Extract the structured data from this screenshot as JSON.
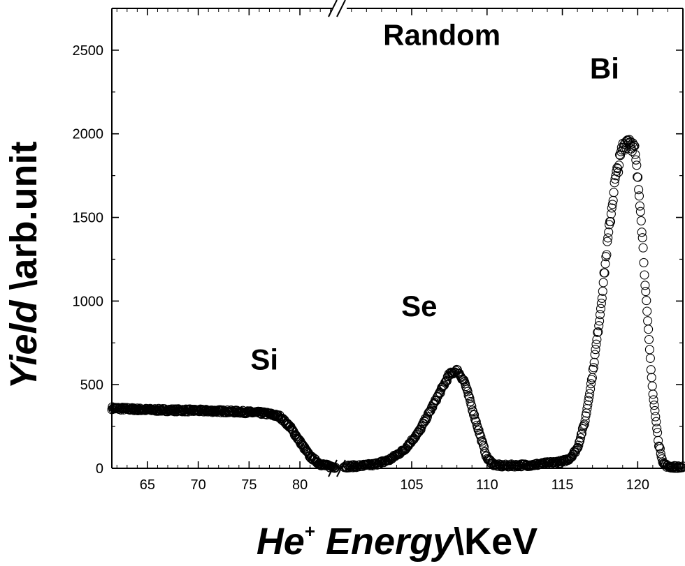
{
  "chart_data": {
    "type": "scatter",
    "title": "",
    "ylabel": {
      "italic_part": "Yield",
      "plain_part": " \\arb.unit"
    },
    "xlabel": {
      "he": "He",
      "sup": "+",
      "energy": " Energy",
      "unit": "\\KeV"
    },
    "marker": "open-circle",
    "ylim": [
      0,
      2750
    ],
    "y_ticks": [
      0,
      500,
      1000,
      1500,
      2000,
      2500
    ],
    "x_axis_break": true,
    "x_segments": [
      {
        "range": [
          61.5,
          83.5
        ],
        "ticks": [
          65,
          70,
          75,
          80
        ]
      },
      {
        "range": [
          100.5,
          123
        ],
        "ticks": [
          105,
          110,
          115,
          120
        ]
      }
    ],
    "annotations": [
      {
        "text": "Random",
        "x": 107,
        "y": 2530
      },
      {
        "text": "Si",
        "x": 76.5,
        "y": 590
      },
      {
        "text": "Se",
        "x": 105.5,
        "y": 910
      },
      {
        "text": "Bi",
        "x": 117.8,
        "y": 2330
      }
    ],
    "series": [
      {
        "points_left": [
          [
            61.5,
            360
          ],
          [
            63,
            355
          ],
          [
            65,
            350
          ],
          [
            67,
            348
          ],
          [
            70,
            345
          ],
          [
            72,
            342
          ],
          [
            74,
            338
          ],
          [
            76,
            332
          ],
          [
            77,
            325
          ],
          [
            78,
            310
          ],
          [
            79,
            250
          ],
          [
            80,
            160
          ],
          [
            81,
            70
          ],
          [
            82,
            25
          ],
          [
            83,
            10
          ],
          [
            83.5,
            8
          ]
        ],
        "points_right": [
          [
            100.5,
            10
          ],
          [
            101.5,
            14
          ],
          [
            102.5,
            22
          ],
          [
            103.5,
            50
          ],
          [
            104.5,
            110
          ],
          [
            105.5,
            220
          ],
          [
            106.5,
            390
          ],
          [
            107.5,
            560
          ],
          [
            108,
            585
          ],
          [
            108.5,
            520
          ],
          [
            109.2,
            300
          ],
          [
            110,
            60
          ],
          [
            110.5,
            20
          ],
          [
            111,
            15
          ],
          [
            113,
            20
          ],
          [
            115,
            40
          ],
          [
            115.5,
            60
          ],
          [
            116,
            120
          ],
          [
            116.5,
            280
          ],
          [
            117,
            560
          ],
          [
            117.5,
            920
          ],
          [
            118,
            1350
          ],
          [
            118.5,
            1720
          ],
          [
            119,
            1920
          ],
          [
            119.4,
            1975
          ],
          [
            119.8,
            1900
          ],
          [
            120.2,
            1550
          ],
          [
            120.6,
            950
          ],
          [
            121,
            450
          ],
          [
            121.4,
            140
          ],
          [
            121.7,
            30
          ],
          [
            122,
            10
          ],
          [
            123,
            5
          ]
        ]
      }
    ]
  }
}
